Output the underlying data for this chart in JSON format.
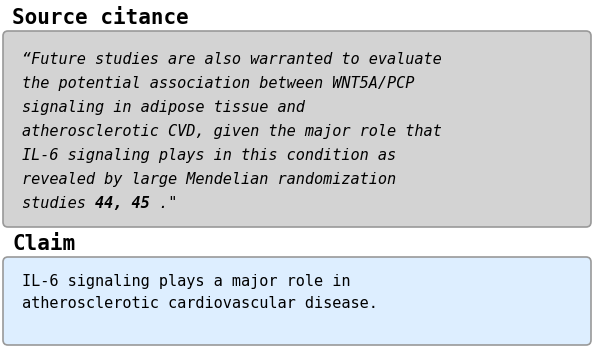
{
  "title1": "Source citance",
  "title2": "Claim",
  "source_lines": [
    "“Future studies are also warranted to evaluate",
    "the potential association between WNT5A/PCP",
    "signaling in adipose tissue and",
    "atherosclerotic CVD, given the major role that",
    "IL-6 signaling plays in this condition as",
    "revealed by large Mendelian randomization",
    "studies "
  ],
  "source_bold": "44, 45",
  "source_end": " .\"",
  "claim_text": "IL-6 signaling plays a major role in\natherosclerotic cardiovascular disease.",
  "bg_color": "#ffffff",
  "source_box_color": "#d3d3d3",
  "claim_box_color": "#ddeeff",
  "border_color": "#999999",
  "title_fontsize": 15,
  "body_fontsize": 11,
  "title_color": "#000000",
  "text_color": "#000000"
}
